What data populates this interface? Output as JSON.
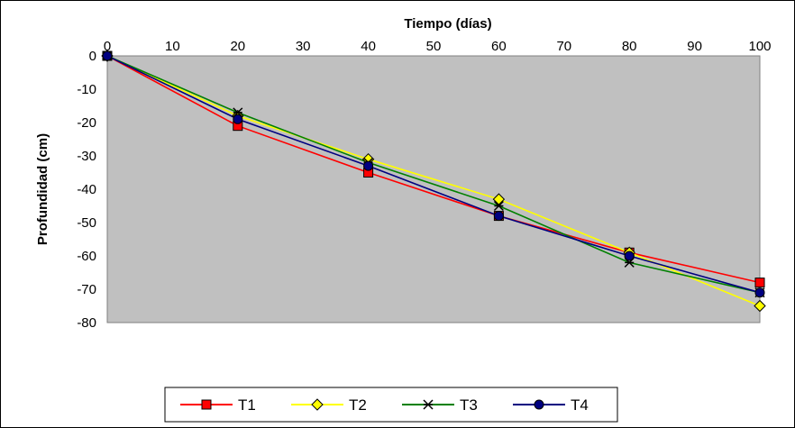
{
  "chart_data": {
    "type": "line",
    "xlabel": "Tiempo (días)",
    "ylabel": "Profundidad (cm)",
    "xlim": [
      0,
      100
    ],
    "ylim": [
      -80,
      0
    ],
    "x_ticks": [
      0,
      10,
      20,
      30,
      40,
      50,
      60,
      70,
      80,
      90,
      100
    ],
    "y_ticks": [
      0,
      -10,
      -20,
      -30,
      -40,
      -50,
      -60,
      -70,
      -80
    ],
    "x_tick_labels": [
      "0",
      "10",
      "20",
      "30",
      "40",
      "50",
      "60",
      "70",
      "80",
      "90",
      "100"
    ],
    "y_tick_labels": [
      "0",
      "-10",
      "-20",
      "-30",
      "-40",
      "-50",
      "-60",
      "-70",
      "-80"
    ],
    "x_axis_position": "top",
    "grid": false,
    "plot_background": "#c0c0c0",
    "legend_position": "bottom",
    "x": [
      0,
      20,
      40,
      60,
      80,
      100
    ],
    "series": [
      {
        "name": "T1",
        "color": "#ff0000",
        "marker": "square",
        "values": [
          0,
          -21,
          -35,
          -48,
          -59,
          -68
        ]
      },
      {
        "name": "T2",
        "color": "#ffff00",
        "marker": "diamond",
        "values": [
          0,
          -18,
          -31,
          -43,
          -59,
          -75
        ]
      },
      {
        "name": "T3",
        "color": "#008000",
        "marker": "asterisk",
        "values": [
          0,
          -17,
          -32,
          -45,
          -62,
          -71
        ]
      },
      {
        "name": "T4",
        "color": "#000080",
        "marker": "circle",
        "values": [
          0,
          -19,
          -33,
          -48,
          -60,
          -71
        ]
      }
    ]
  }
}
